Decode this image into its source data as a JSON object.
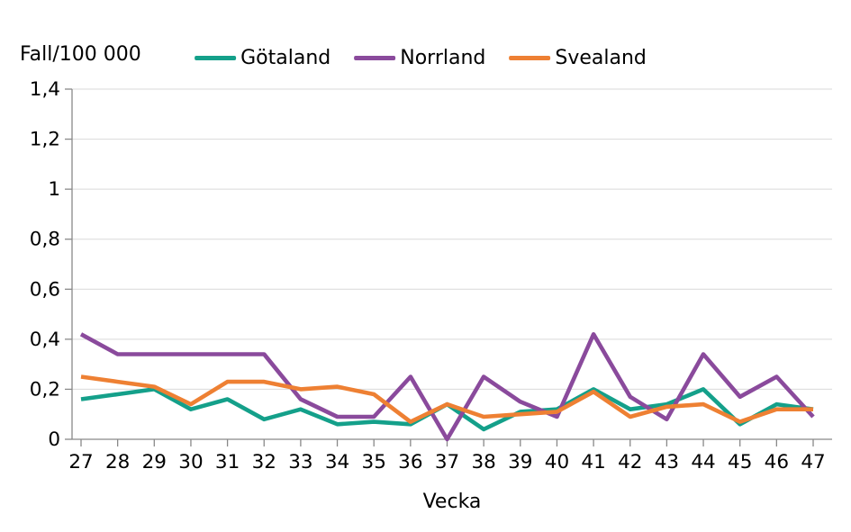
{
  "chart_data": {
    "type": "line",
    "title": "Fall/100 000",
    "xlabel": "Vecka",
    "x": [
      27,
      28,
      29,
      30,
      31,
      32,
      33,
      34,
      35,
      36,
      37,
      38,
      39,
      40,
      41,
      42,
      43,
      44,
      45,
      46,
      47
    ],
    "ylim": [
      0,
      1.4
    ],
    "ytick_step": 0.2,
    "ytick_labels": [
      "0",
      "0,2",
      "0,4",
      "0,6",
      "0,8",
      "1",
      "1,2",
      "1,4"
    ],
    "grid": true,
    "legend_position": "top-center",
    "series": [
      {
        "name": "Götaland",
        "color": "#14A08A",
        "values": [
          0.16,
          0.18,
          0.2,
          0.12,
          0.16,
          0.08,
          0.12,
          0.06,
          0.07,
          0.06,
          0.14,
          0.04,
          0.11,
          0.12,
          0.2,
          0.12,
          0.14,
          0.2,
          0.06,
          0.14,
          0.12
        ]
      },
      {
        "name": "Norrland",
        "color": "#8A4A9C",
        "values": [
          0.42,
          0.34,
          0.34,
          0.34,
          0.34,
          0.34,
          0.16,
          0.09,
          0.09,
          0.25,
          0.0,
          0.25,
          0.15,
          0.09,
          0.42,
          0.17,
          0.08,
          0.34,
          0.17,
          0.25,
          0.09
        ]
      },
      {
        "name": "Svealand",
        "color": "#EE8033",
        "values": [
          0.25,
          0.23,
          0.21,
          0.14,
          0.23,
          0.23,
          0.2,
          0.21,
          0.18,
          0.07,
          0.14,
          0.09,
          0.1,
          0.11,
          0.19,
          0.09,
          0.13,
          0.14,
          0.07,
          0.12,
          0.12
        ]
      }
    ],
    "axis_color": "#898989",
    "gridline_color": "#D9D9D9",
    "text_color": "#000000"
  }
}
